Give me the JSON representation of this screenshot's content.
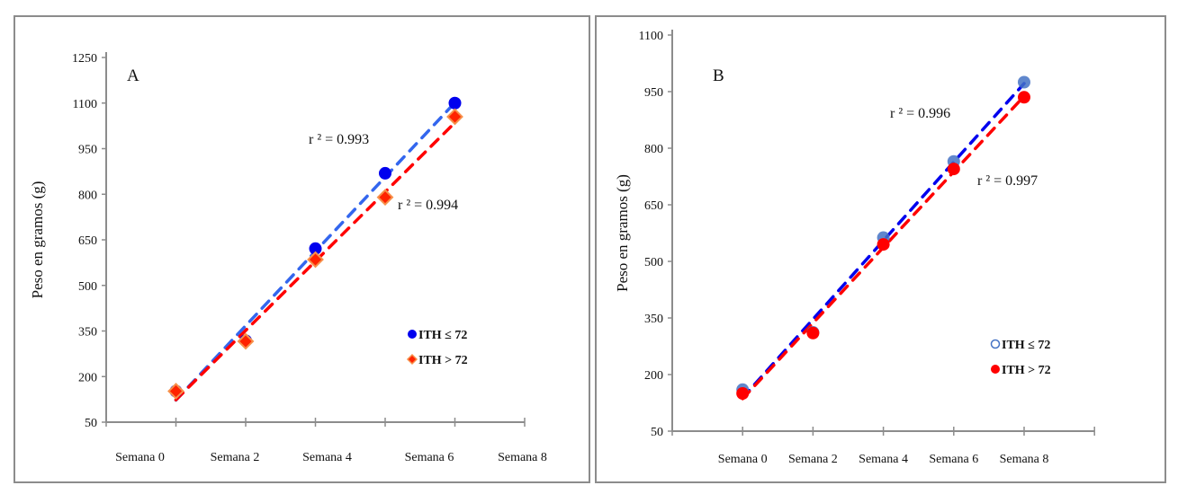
{
  "chart_data": [
    {
      "type": "scatter",
      "panel_label": "A",
      "ylabel": "Peso en gramos (g)",
      "xlabel": "",
      "categories": [
        "Semana 0",
        "Semana 2",
        "Semana 4",
        "Semana 6",
        "Semana 8"
      ],
      "ylim": [
        50,
        1250
      ],
      "yticks": [
        50,
        200,
        350,
        500,
        650,
        800,
        950,
        1100,
        1250
      ],
      "series": [
        {
          "name": "ITH ≤ 72",
          "marker": "circle",
          "color": "#0000ee",
          "trend_color": "#3366ee",
          "values": [
            152,
            318,
            621,
            869,
            1100
          ],
          "r2_label": "r ² = 0.993"
        },
        {
          "name": "ITH > 72",
          "marker": "diamond",
          "color": "#ff2200",
          "trend_color": "#ff0000",
          "values": [
            152,
            316,
            585,
            790,
            1055
          ],
          "r2_label": "r ² = 0.994"
        }
      ],
      "trendline": "linear-dashed",
      "legend": "bottom-right"
    },
    {
      "type": "scatter",
      "panel_label": "B",
      "ylabel": "Peso en gramos (g)",
      "xlabel": "",
      "categories": [
        "Semana 0",
        "Semana 2",
        "Semana 4",
        "Semana 6",
        "Semana 8"
      ],
      "ylim": [
        50,
        1100
      ],
      "yticks": [
        50,
        200,
        350,
        500,
        650,
        800,
        950,
        1100
      ],
      "series": [
        {
          "name": "ITH ≤ 72",
          "marker": "circle-open",
          "color": "#4472c4",
          "trend_color": "#0000ee",
          "values": [
            160,
            312,
            563,
            765,
            975
          ],
          "r2_label": "r ² = 0.996"
        },
        {
          "name": "ITH > 72",
          "marker": "circle",
          "color": "#ff0000",
          "trend_color": "#ff0000",
          "values": [
            150,
            310,
            545,
            745,
            935
          ],
          "r2_label": "r ² = 0.997"
        }
      ],
      "trendline": "linear-dashed",
      "legend": "bottom-right"
    }
  ]
}
